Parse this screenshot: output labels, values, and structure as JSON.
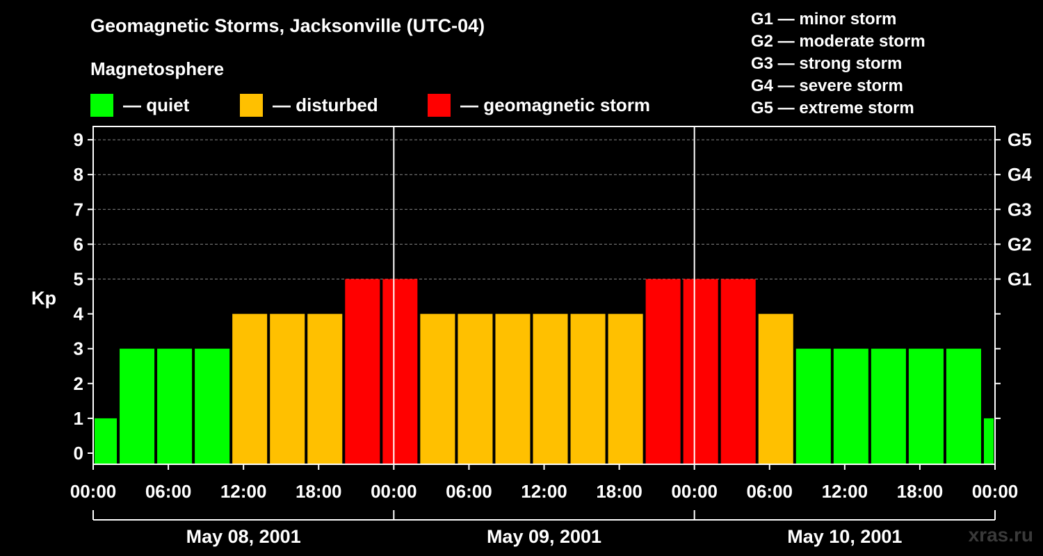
{
  "header": {
    "title": "Geomagnetic Storms, Jacksonville (UTC-04)",
    "magnetosphere_label": "Magnetosphere"
  },
  "legend": {
    "items": [
      {
        "label": "— quiet",
        "color": "#00ff00"
      },
      {
        "label": "— disturbed",
        "color": "#ffc000"
      },
      {
        "label": "— geomagnetic storm",
        "color": "#ff0000"
      }
    ]
  },
  "g_scale": [
    {
      "label": "G1 — minor storm"
    },
    {
      "label": "G2 — moderate storm"
    },
    {
      "label": "G3 — strong storm"
    },
    {
      "label": "G4 — severe storm"
    },
    {
      "label": "G5 — extreme storm"
    }
  ],
  "watermark": "xras.ru",
  "chart_data": {
    "type": "bar",
    "ylabel": "Kp",
    "ylim": [
      0,
      9
    ],
    "yticks": [
      0,
      1,
      2,
      3,
      4,
      5,
      6,
      7,
      8,
      9
    ],
    "right_ticks": [
      {
        "kp": 5,
        "label": "G1"
      },
      {
        "kp": 6,
        "label": "G2"
      },
      {
        "kp": 7,
        "label": "G3"
      },
      {
        "kp": 8,
        "label": "G4"
      },
      {
        "kp": 9,
        "label": "G5"
      }
    ],
    "x_range_hours": [
      0,
      72
    ],
    "xticks": [
      {
        "hour": 0,
        "label": "00:00"
      },
      {
        "hour": 6,
        "label": "06:00"
      },
      {
        "hour": 12,
        "label": "12:00"
      },
      {
        "hour": 18,
        "label": "18:00"
      },
      {
        "hour": 24,
        "label": "00:00"
      },
      {
        "hour": 30,
        "label": "06:00"
      },
      {
        "hour": 36,
        "label": "12:00"
      },
      {
        "hour": 42,
        "label": "18:00"
      },
      {
        "hour": 48,
        "label": "00:00"
      },
      {
        "hour": 54,
        "label": "06:00"
      },
      {
        "hour": 60,
        "label": "12:00"
      },
      {
        "hour": 66,
        "label": "18:00"
      },
      {
        "hour": 72,
        "label": "00:00"
      }
    ],
    "dates": [
      {
        "label": "May 08, 2001",
        "start_hour": 0,
        "end_hour": 24
      },
      {
        "label": "May 09, 2001",
        "start_hour": 24,
        "end_hour": 48
      },
      {
        "label": "May 10, 2001",
        "start_hour": 48,
        "end_hour": 72
      }
    ],
    "day_dividers_hours": [
      24,
      48
    ],
    "gridlines_kp": [
      5,
      6,
      7,
      8,
      9
    ],
    "bars": [
      {
        "start_hour": 0,
        "end_hour": 2,
        "kp": 1
      },
      {
        "start_hour": 2,
        "end_hour": 5,
        "kp": 3
      },
      {
        "start_hour": 5,
        "end_hour": 8,
        "kp": 3
      },
      {
        "start_hour": 8,
        "end_hour": 11,
        "kp": 3
      },
      {
        "start_hour": 11,
        "end_hour": 14,
        "kp": 4
      },
      {
        "start_hour": 14,
        "end_hour": 17,
        "kp": 4
      },
      {
        "start_hour": 17,
        "end_hour": 20,
        "kp": 4
      },
      {
        "start_hour": 20,
        "end_hour": 23,
        "kp": 5
      },
      {
        "start_hour": 23,
        "end_hour": 26,
        "kp": 5
      },
      {
        "start_hour": 26,
        "end_hour": 29,
        "kp": 4
      },
      {
        "start_hour": 29,
        "end_hour": 32,
        "kp": 4
      },
      {
        "start_hour": 32,
        "end_hour": 35,
        "kp": 4
      },
      {
        "start_hour": 35,
        "end_hour": 38,
        "kp": 4
      },
      {
        "start_hour": 38,
        "end_hour": 41,
        "kp": 4
      },
      {
        "start_hour": 41,
        "end_hour": 44,
        "kp": 4
      },
      {
        "start_hour": 44,
        "end_hour": 47,
        "kp": 5
      },
      {
        "start_hour": 47,
        "end_hour": 50,
        "kp": 5
      },
      {
        "start_hour": 50,
        "end_hour": 53,
        "kp": 5
      },
      {
        "start_hour": 53,
        "end_hour": 56,
        "kp": 4
      },
      {
        "start_hour": 56,
        "end_hour": 59,
        "kp": 3
      },
      {
        "start_hour": 59,
        "end_hour": 62,
        "kp": 3
      },
      {
        "start_hour": 62,
        "end_hour": 65,
        "kp": 3
      },
      {
        "start_hour": 65,
        "end_hour": 68,
        "kp": 3
      },
      {
        "start_hour": 68,
        "end_hour": 71,
        "kp": 3
      },
      {
        "start_hour": 71,
        "end_hour": 72,
        "kp": 1
      }
    ]
  }
}
